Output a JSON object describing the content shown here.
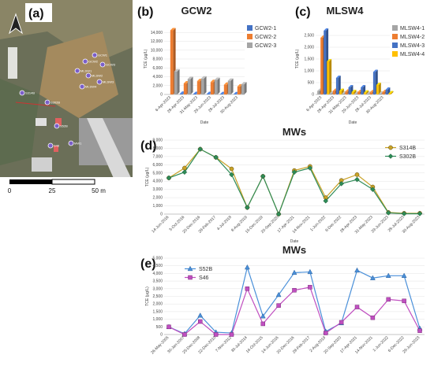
{
  "panel_a": {
    "letter": "(a)",
    "scale_labels": [
      "0",
      "25",
      "50 m"
    ],
    "wells": [
      {
        "label": "GCW1"
      },
      {
        "label": "GCW2"
      },
      {
        "label": "GCW3"
      },
      {
        "label": "MLSW1"
      },
      {
        "label": "MLSW2"
      },
      {
        "label": "MLSW3"
      },
      {
        "label": "MLSW4"
      },
      {
        "label": "S314B"
      },
      {
        "label": "S302B"
      },
      {
        "label": "S52B"
      },
      {
        "label": "S46"
      },
      {
        "label": "MW1"
      }
    ]
  },
  "chart_data": [
    {
      "id": "b",
      "letter": "(b)",
      "type": "bar",
      "title": "GCW2",
      "ylabel": "TCE (µg/L)",
      "xlabel": "Date",
      "ylim": [
        0,
        16000
      ],
      "yticks": [
        "0",
        "2,000",
        "4,000",
        "6,000",
        "8,000",
        "10,000",
        "12,000",
        "14,000"
      ],
      "categories": [
        "6-Apr-2023",
        "28-Apr-2023",
        "31-May-2023",
        "29-Jun-2023",
        "28-Jul-2023",
        "30-Aug-2023"
      ],
      "series": [
        {
          "name": "GCW2-1",
          "color": "#4472c4",
          "values": [
            0,
            150,
            100,
            80,
            60,
            50
          ]
        },
        {
          "name": "GCW2-2",
          "color": "#ed7d31",
          "values": [
            14500,
            2500,
            3000,
            2800,
            2200,
            1800
          ]
        },
        {
          "name": "GCW2-3",
          "color": "#a5a5a5",
          "values": [
            5200,
            3500,
            3600,
            3300,
            3100,
            2300
          ]
        }
      ]
    },
    {
      "id": "c",
      "letter": "(c)",
      "type": "bar",
      "title": "MLSW4",
      "ylabel": "TCE (µg/L)",
      "xlabel": "Date",
      "ylim": [
        0,
        3000
      ],
      "yticks": [
        "0",
        "500",
        "1,000",
        "1,500",
        "2,000",
        "2,500"
      ],
      "categories": [
        "6-Apr-2023",
        "28-Apr-2023",
        "31-May-2023",
        "29-Jun-2023",
        "28-Jul-2023",
        "30-Aug-2023"
      ],
      "series": [
        {
          "name": "MLSW4-1",
          "color": "#a5a5a5",
          "values": [
            150,
            50,
            40,
            30,
            30,
            40
          ]
        },
        {
          "name": "MLSW4-2",
          "color": "#ed7d31",
          "values": [
            2400,
            150,
            120,
            100,
            90,
            100
          ]
        },
        {
          "name": "MLSW4-3",
          "color": "#4472c4",
          "values": [
            2700,
            700,
            300,
            300,
            950,
            200
          ]
        },
        {
          "name": "MLSW4-4",
          "color": "#ffc000",
          "values": [
            1400,
            150,
            100,
            80,
            400,
            50
          ]
        }
      ]
    },
    {
      "id": "d",
      "letter": "(d)",
      "type": "line",
      "title": "MWs",
      "ylabel": "TCE (µg/L)",
      "xlabel": "Date",
      "ylim": [
        0,
        9000
      ],
      "yticks": [
        "0",
        "1,000",
        "2,000",
        "3,000",
        "4,000",
        "5,000",
        "6,000",
        "7,000",
        "8,000",
        "9,000"
      ],
      "categories": [
        "14-Jun-2016",
        "3-Oct-2016",
        "20-Dec-2016",
        "28-Feb-2017",
        "4-Jul-2018",
        "8-Aug-2019",
        "15-Dec-2019",
        "20-Sep-2020",
        "17-Apr-2021",
        "14-Nov-2021",
        "1-Jun-2022",
        "6-Dec-2022",
        "28-Apr-2023",
        "31-May-2023",
        "29-Jun-2023",
        "28-Jul-2023",
        "30-Aug-2023"
      ],
      "series": [
        {
          "name": "S314B",
          "color": "#c9a227",
          "marker": "circle",
          "values": [
            4400,
            5600,
            7900,
            6900,
            5500,
            800,
            4600,
            0,
            5300,
            5800,
            2000,
            4100,
            4800,
            3300,
            200,
            100,
            100
          ]
        },
        {
          "name": "S302B",
          "color": "#2e8b57",
          "marker": "diamond",
          "values": [
            4400,
            5100,
            7900,
            6900,
            4800,
            800,
            4600,
            0,
            5100,
            5600,
            1600,
            3700,
            4200,
            3000,
            150,
            50,
            50
          ]
        }
      ]
    },
    {
      "id": "e",
      "letter": "(e)",
      "type": "line",
      "title": "MWs",
      "ylabel": "TCE (µg/L)",
      "xlabel": "",
      "ylim": [
        0,
        5000
      ],
      "yticks": [
        "0",
        "500",
        "1,000",
        "1,500",
        "2,000",
        "2,500",
        "3,000",
        "3,500",
        "4,000",
        "4,500",
        "5,000"
      ],
      "categories": [
        "26-May-2005",
        "30-Jan-2007",
        "25-Dec-2008",
        "22-Dec-2010",
        "7-Nov-2012",
        "30-Jul-2014",
        "14-Oct-2015",
        "14-Jun-2016",
        "20-Dec-2016",
        "28-Feb-2017",
        "2-Aug-2019",
        "20-Sep-2020",
        "17-Apr-2021",
        "14-Nov-2021",
        "1-Jun-2022",
        "6-Dec-2022",
        "29-Jun-2023"
      ],
      "series": [
        {
          "name": "S52B",
          "color": "#4a90d9",
          "marker": "triangle",
          "values": [
            500,
            50,
            1250,
            150,
            100,
            4400,
            1200,
            2600,
            4050,
            4100,
            200,
            750,
            4200,
            3700,
            3850,
            3850,
            400
          ]
        },
        {
          "name": "S46",
          "color": "#c04fc0",
          "marker": "square",
          "values": [
            500,
            0,
            850,
            0,
            0,
            3000,
            700,
            1900,
            2900,
            3100,
            100,
            800,
            1800,
            1100,
            2300,
            2200,
            250
          ]
        }
      ]
    }
  ]
}
